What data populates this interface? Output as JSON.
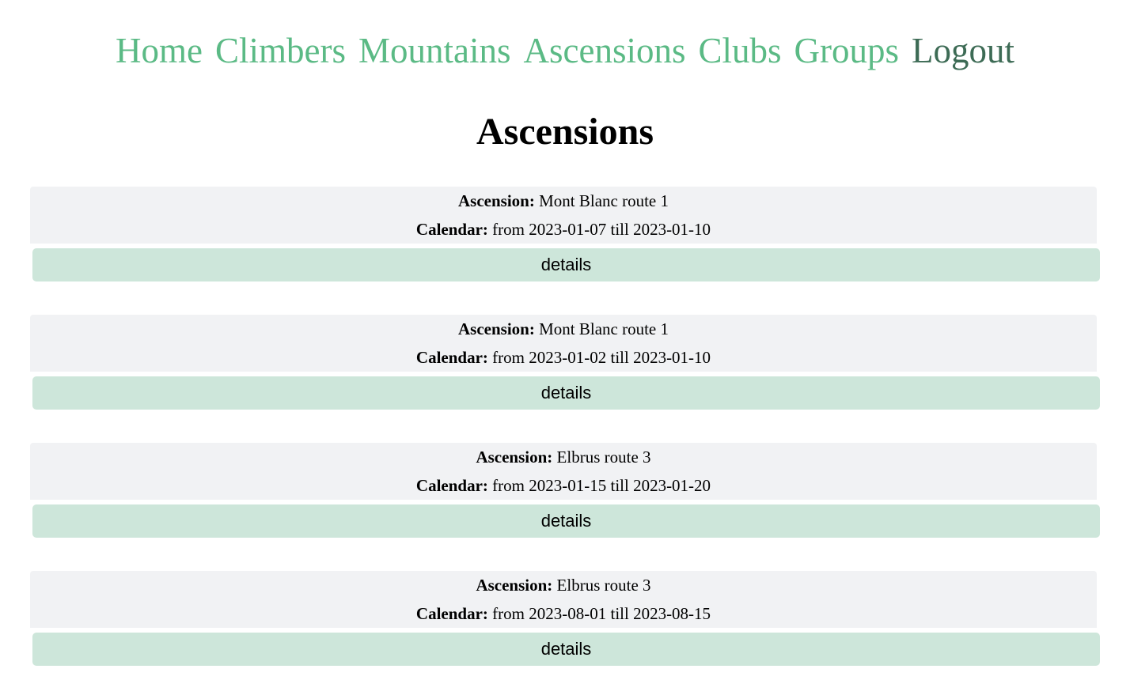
{
  "colors": {
    "nav_link": "#5bba85",
    "nav_link_active": "#3d6b55",
    "card_background": "#f1f2f4",
    "details_button": "#cde6da"
  },
  "nav": {
    "items": [
      {
        "label": "Home"
      },
      {
        "label": "Climbers"
      },
      {
        "label": "Mountains"
      },
      {
        "label": "Ascensions"
      },
      {
        "label": "Clubs"
      },
      {
        "label": "Groups"
      },
      {
        "label": "Logout"
      }
    ]
  },
  "page": {
    "title": "Ascensions"
  },
  "ascensions": [
    {
      "ascension_label": "Ascension:",
      "ascension_value": "Mont Blanc route 1",
      "calendar_label": "Calendar:",
      "calendar_value": "from 2023-01-07 till 2023-01-10",
      "button_label": "details"
    },
    {
      "ascension_label": "Ascension:",
      "ascension_value": "Mont Blanc route 1",
      "calendar_label": "Calendar:",
      "calendar_value": "from 2023-01-02 till 2023-01-10",
      "button_label": "details"
    },
    {
      "ascension_label": "Ascension:",
      "ascension_value": "Elbrus route 3",
      "calendar_label": "Calendar:",
      "calendar_value": "from 2023-01-15 till 2023-01-20",
      "button_label": "details"
    },
    {
      "ascension_label": "Ascension:",
      "ascension_value": "Elbrus route 3",
      "calendar_label": "Calendar:",
      "calendar_value": "from 2023-08-01 till 2023-08-15",
      "button_label": "details"
    }
  ]
}
